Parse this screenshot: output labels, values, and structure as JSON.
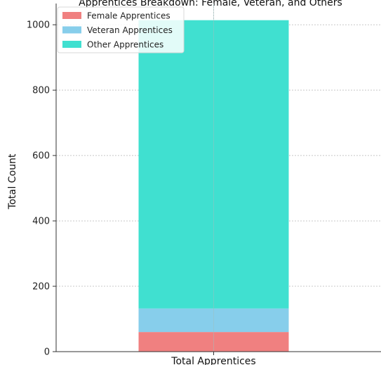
{
  "chart_data": {
    "type": "bar",
    "stacked": true,
    "title": "Apprentices Breakdown: Female, Veteran, and Others",
    "categories": [
      "Total Apprentices"
    ],
    "series": [
      {
        "name": "Female Apprentices",
        "values": [
          60
        ],
        "color": "#f08080"
      },
      {
        "name": "Veteran Apprentices",
        "values": [
          72
        ],
        "color": "#87ceeb"
      },
      {
        "name": "Other Apprentices",
        "values": [
          882
        ],
        "color": "#40e0d0"
      }
    ],
    "xlabel": "",
    "ylabel": "Total Count",
    "ylim": [
      0,
      1065
    ],
    "yticks": [
      0,
      200,
      400,
      600,
      800,
      1000
    ],
    "grid": true,
    "legend_position": "top-left"
  }
}
